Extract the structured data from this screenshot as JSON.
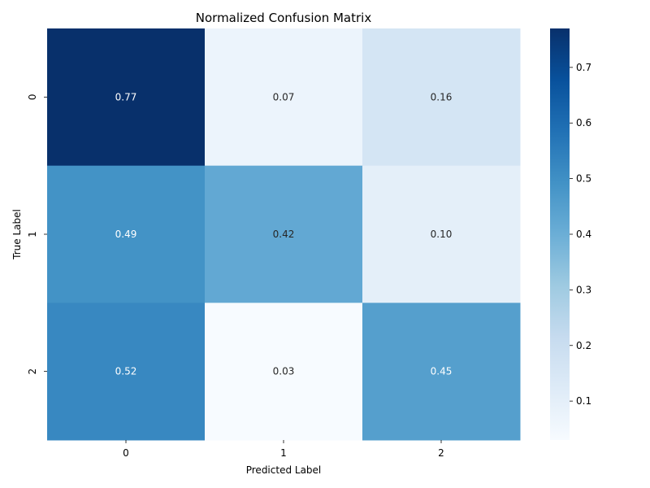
{
  "chart_data": {
    "type": "heatmap",
    "title": "Normalized Confusion Matrix",
    "xlabel": "Predicted Label",
    "ylabel": "True Label",
    "x_categories": [
      "0",
      "1",
      "2"
    ],
    "y_categories": [
      "0",
      "1",
      "2"
    ],
    "values": [
      [
        0.77,
        0.07,
        0.16
      ],
      [
        0.49,
        0.42,
        0.1
      ],
      [
        0.52,
        0.03,
        0.45
      ]
    ],
    "cell_labels": [
      [
        "0.77",
        "0.07",
        "0.16"
      ],
      [
        "0.49",
        "0.42",
        "0.10"
      ],
      [
        "0.52",
        "0.03",
        "0.45"
      ]
    ],
    "colormap": "Blues",
    "colorbar": {
      "range": [
        0.03,
        0.77
      ],
      "ticks": [
        0.1,
        0.2,
        0.3,
        0.4,
        0.5,
        0.6,
        0.7
      ],
      "tick_labels": [
        "0.1",
        "0.2",
        "0.3",
        "0.4",
        "0.5",
        "0.6",
        "0.7"
      ]
    }
  }
}
